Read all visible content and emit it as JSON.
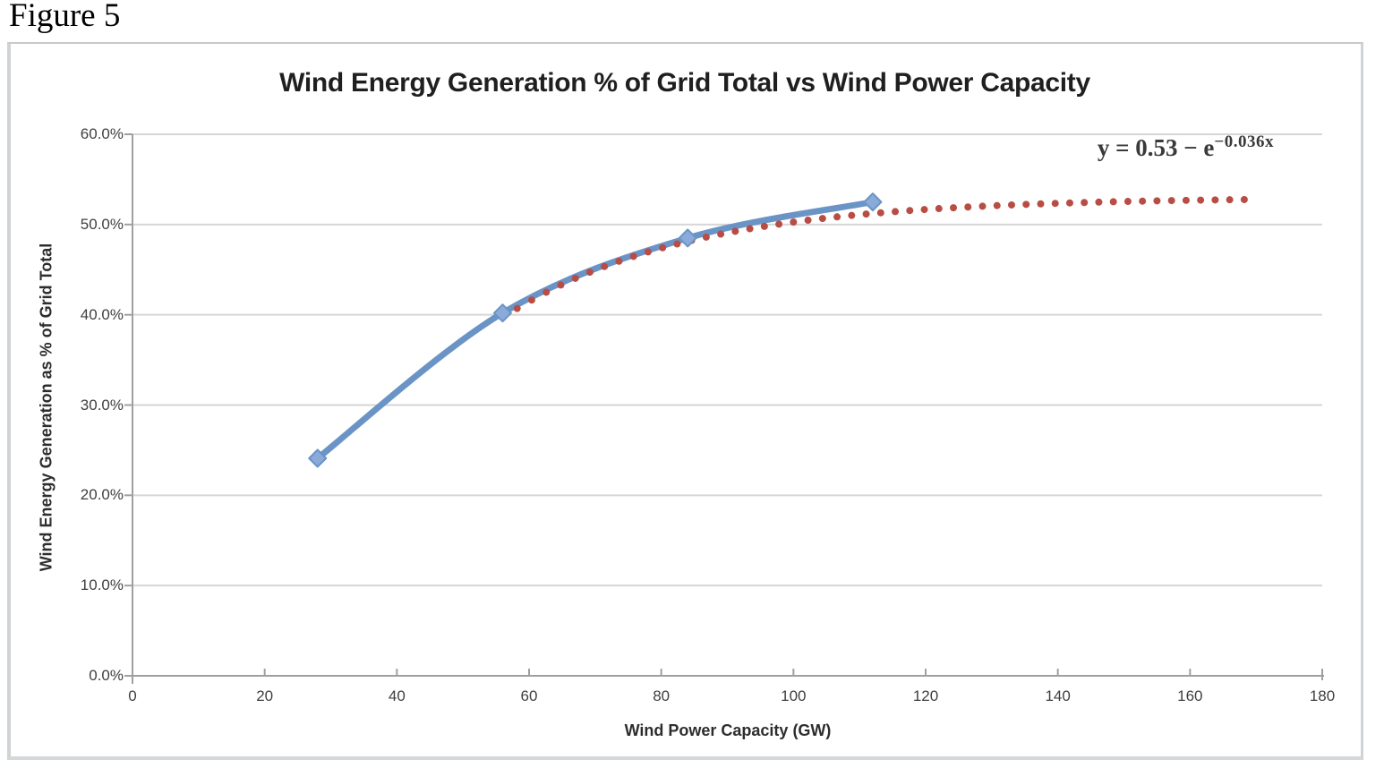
{
  "figure_label": "Figure 5",
  "chart_data": {
    "type": "line",
    "title": "Wind Energy Generation % of Grid Total vs Wind Power Capacity",
    "xlabel": "Wind Power Capacity (GW)",
    "ylabel": "Wind Energy Generation as % of Grid Total",
    "xlim": [
      0,
      180
    ],
    "ylim_percent": [
      0,
      60
    ],
    "x_ticks": [
      0,
      20,
      40,
      60,
      80,
      100,
      120,
      140,
      160,
      180
    ],
    "y_tick_labels": [
      "0.0%",
      "10.0%",
      "20.0%",
      "30.0%",
      "40.0%",
      "50.0%",
      "60.0%"
    ],
    "grid": "horizontal-only",
    "legend": "none",
    "series": [
      {
        "name": "wind-generation-observed",
        "style": "smooth-line-with-diamond-markers",
        "color": "#6b94c6",
        "marker_fill": "#8aabd9",
        "points_gw_pct": [
          [
            28,
            24.1
          ],
          [
            56,
            40.2
          ],
          [
            84,
            48.5
          ],
          [
            112,
            52.5
          ]
        ]
      },
      {
        "name": "exponential-fit-trendline",
        "style": "dotted",
        "color": "#b84d45",
        "equation_text": "y = 0.53 − e^(−0.036x)",
        "a": 0.53,
        "b": 0.036,
        "x_start_gw": 56,
        "x_end_gw": 168,
        "dot_step_gw": 2.2
      }
    ],
    "annotation": {
      "equation_base": "y = 0.53 − e",
      "equation_exponent": "−0.036x"
    }
  },
  "colors": {
    "gridline": "#d6d6d6",
    "axis": "#9da0a1",
    "tick_label": "#3f3f3f",
    "series_line": "#6b94c6",
    "marker_fill": "#8aabd9",
    "trend_dot": "#b84d45"
  }
}
